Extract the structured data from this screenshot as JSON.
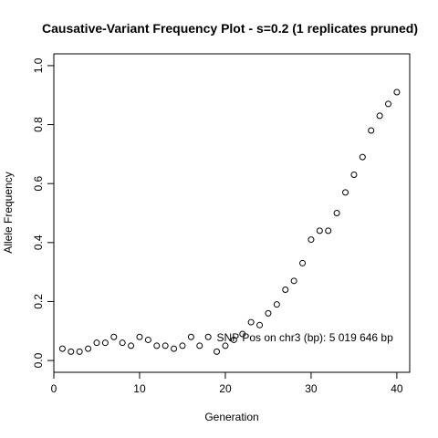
{
  "chart_data": {
    "type": "scatter",
    "title": "Causative-Variant Frequency Plot - s=0.2 (1 replicates pruned)",
    "xlabel": "Generation",
    "ylabel": "Allele Frequency",
    "xlim": [
      0,
      41.5
    ],
    "ylim": [
      -0.04,
      1.04
    ],
    "xticks": [
      0,
      10,
      20,
      30,
      40
    ],
    "xtick_labels": [
      "0",
      "10",
      "20",
      "30",
      "40"
    ],
    "yticks": [
      0.0,
      0.2,
      0.4,
      0.6,
      0.8,
      1.0
    ],
    "ytick_labels": [
      "0.0",
      "0.2",
      "0.4",
      "0.6",
      "0.8",
      "1.0"
    ],
    "annotation": {
      "text": "SNP Pos on chr3 (bp): 5 019 646 bp",
      "x": 19,
      "y": 0.065
    },
    "series": [
      {
        "name": "frequency",
        "marker": "open-circle",
        "x": [
          1,
          2,
          3,
          4,
          5,
          6,
          7,
          8,
          9,
          10,
          11,
          12,
          13,
          14,
          15,
          16,
          17,
          18,
          19,
          20,
          21,
          22,
          23,
          24,
          25,
          26,
          27,
          28,
          29,
          30,
          31,
          32,
          33,
          34,
          35,
          36,
          37,
          38,
          39,
          40
        ],
        "y": [
          0.04,
          0.03,
          0.03,
          0.04,
          0.06,
          0.06,
          0.08,
          0.06,
          0.05,
          0.08,
          0.07,
          0.05,
          0.05,
          0.04,
          0.05,
          0.08,
          0.05,
          0.08,
          0.03,
          0.05,
          0.07,
          0.09,
          0.13,
          0.12,
          0.16,
          0.19,
          0.24,
          0.27,
          0.33,
          0.41,
          0.44,
          0.44,
          0.5,
          0.57,
          0.63,
          0.69,
          0.78,
          0.83,
          0.87,
          0.91
        ]
      }
    ]
  }
}
